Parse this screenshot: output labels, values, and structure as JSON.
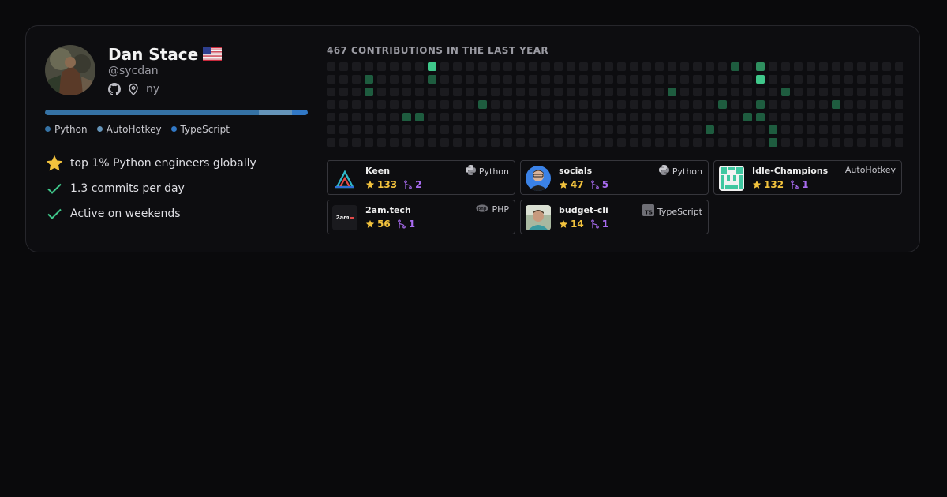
{
  "profile": {
    "name": "Dan Stace",
    "flag_icon": "us-flag-icon",
    "handle": "@sycdan",
    "location": "ny",
    "github_icon": "github-icon",
    "location_icon": "map-pin-icon"
  },
  "languages": [
    {
      "name": "Python",
      "share": 0.815,
      "color": "#3572A5"
    },
    {
      "name": "AutoHotkey",
      "share": 0.125,
      "color": "#6594B9"
    },
    {
      "name": "TypeScript",
      "share": 0.06,
      "color": "#3178C6"
    }
  ],
  "facts": [
    {
      "icon": "star-icon",
      "text": "top 1% Python engineers globally"
    },
    {
      "icon": "check-icon",
      "text": "1.3 commits per day"
    },
    {
      "icon": "check-icon",
      "text": "Active on weekends"
    }
  ],
  "contributions": {
    "title": "467 CONTRIBUTIONS IN THE LAST YEAR",
    "weeks": 46,
    "colors": {
      "0": "#1b1b1f",
      "1": "#1e5c3f",
      "2": "#2f8f5f",
      "3": "#3fc78a"
    },
    "active": [
      [
        8,
        0,
        3
      ],
      [
        32,
        0,
        1
      ],
      [
        34,
        0,
        2
      ],
      [
        3,
        1,
        1
      ],
      [
        8,
        1,
        1
      ],
      [
        34,
        1,
        3
      ],
      [
        3,
        2,
        1
      ],
      [
        27,
        2,
        1
      ],
      [
        36,
        2,
        1
      ],
      [
        12,
        3,
        1
      ],
      [
        31,
        3,
        1
      ],
      [
        34,
        3,
        1
      ],
      [
        40,
        3,
        1
      ],
      [
        6,
        4,
        1
      ],
      [
        7,
        4,
        1
      ],
      [
        33,
        4,
        1
      ],
      [
        34,
        4,
        1
      ],
      [
        30,
        5,
        1
      ],
      [
        35,
        5,
        1
      ],
      [
        35,
        6,
        1
      ]
    ]
  },
  "repos": [
    {
      "name": "Keen",
      "language": "Python",
      "lang_icon": "python-icon",
      "stars": "133",
      "forks": "2",
      "logo": "keen-logo"
    },
    {
      "name": "socials",
      "language": "Python",
      "lang_icon": "python-icon",
      "stars": "47",
      "forks": "5",
      "logo": "socials-avatar"
    },
    {
      "name": "Idle-Champions",
      "language": "AutoHotkey",
      "lang_icon": "",
      "stars": "132",
      "forks": "1",
      "logo": "idle-champions-logo"
    },
    {
      "name": "2am.tech",
      "language": "PHP",
      "lang_icon": "php-icon",
      "stars": "56",
      "forks": "1",
      "logo": "2am-logo",
      "logo_text": "2am"
    },
    {
      "name": "budget-cli",
      "language": "TypeScript",
      "lang_icon": "typescript-icon",
      "stars": "14",
      "forks": "1",
      "logo": "budget-cli-avatar"
    }
  ]
}
